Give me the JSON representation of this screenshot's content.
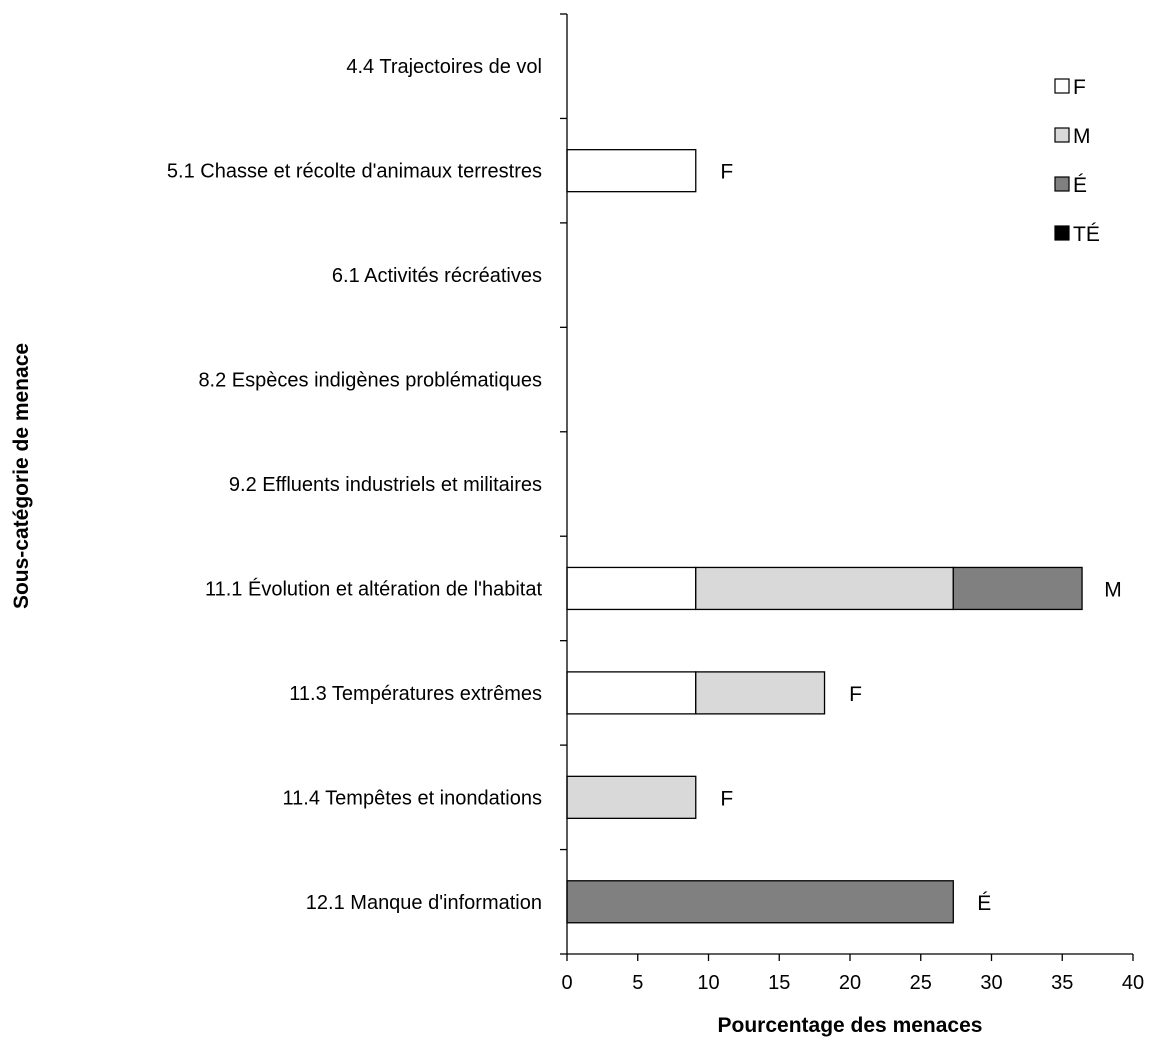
{
  "chart_data": {
    "type": "bar",
    "orientation": "horizontal",
    "stacked": true,
    "categories": [
      "4.4 Trajectoires  de vol",
      "5.1 Chasse  et récolte d'animaux terrestres",
      "6.1 Activités récréatives",
      "8.2 Espèces indigènes problématiques",
      "9.2 Effluents industriels et militaires",
      "11.1 Évolution et altération de l'habitat",
      "11.3 Températures  extrêmes",
      "11.4 Tempêtes et inondations",
      "12.1 Manque d'information"
    ],
    "series": [
      {
        "name": "F",
        "color": "#ffffff",
        "values": [
          0,
          9.1,
          0,
          0,
          0,
          9.1,
          9.1,
          0,
          0
        ]
      },
      {
        "name": "M",
        "color": "#d9d9d9",
        "values": [
          0,
          0,
          0,
          0,
          0,
          18.2,
          9.1,
          9.1,
          0
        ]
      },
      {
        "name": "É",
        "color": "#808080",
        "values": [
          0,
          0,
          0,
          0,
          0,
          9.1,
          0,
          0,
          27.3
        ]
      },
      {
        "name": "TÉ",
        "color": "#000000",
        "values": [
          0,
          0,
          0,
          0,
          0,
          0,
          0,
          0,
          0
        ]
      }
    ],
    "end_labels": [
      "",
      "F",
      "",
      "",
      "",
      "M",
      "F",
      "F",
      "É"
    ],
    "xlabel": "Pourcentage des menaces",
    "ylabel": "Sous-catégorie  de menace",
    "xlim": [
      0,
      40
    ],
    "xticks": [
      0,
      5,
      10,
      15,
      20,
      25,
      30,
      35,
      40
    ],
    "grid": false,
    "legend_position": "top-right"
  }
}
